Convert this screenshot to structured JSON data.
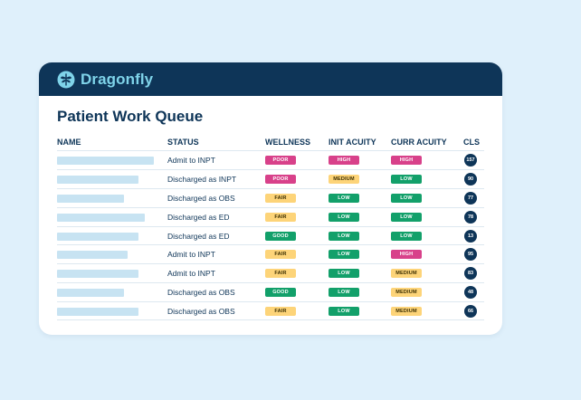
{
  "brand": {
    "name": "Dragonfly",
    "logo_icon": "dragonfly-icon",
    "color": "#7fd4ea"
  },
  "page_title": "Patient Work Queue",
  "columns": {
    "name": "NAME",
    "status": "STATUS",
    "wellness": "WELLNESS",
    "init_acuity": "INIT ACUITY",
    "curr_acuity": "CURR ACUITY",
    "cls": "CLS"
  },
  "rows": [
    {
      "status": "Admit to INPT",
      "wellness": "POOR",
      "init_acuity": "HIGH",
      "curr_acuity": "HIGH",
      "cls": "157"
    },
    {
      "status": "Discharged as INPT",
      "wellness": "POOR",
      "init_acuity": "MEDIUM",
      "curr_acuity": "LOW",
      "cls": "90"
    },
    {
      "status": "Discharged as OBS",
      "wellness": "FAIR",
      "init_acuity": "LOW",
      "curr_acuity": "LOW",
      "cls": "77"
    },
    {
      "status": "Discharged as ED",
      "wellness": "FAIR",
      "init_acuity": "LOW",
      "curr_acuity": "LOW",
      "cls": "78"
    },
    {
      "status": "Discharged as ED",
      "wellness": "GOOD",
      "init_acuity": "LOW",
      "curr_acuity": "LOW",
      "cls": "13"
    },
    {
      "status": "Admit to INPT",
      "wellness": "FAIR",
      "init_acuity": "LOW",
      "curr_acuity": "HIGH",
      "cls": "95"
    },
    {
      "status": "Admit to INPT",
      "wellness": "FAIR",
      "init_acuity": "LOW",
      "curr_acuity": "MEDIUM",
      "cls": "83"
    },
    {
      "status": "Discharged as OBS",
      "wellness": "GOOD",
      "init_acuity": "LOW",
      "curr_acuity": "MEDIUM",
      "cls": "48"
    },
    {
      "status": "Discharged as OBS",
      "wellness": "FAIR",
      "init_acuity": "LOW",
      "curr_acuity": "MEDIUM",
      "cls": "66"
    }
  ],
  "colors": {
    "header_bg": "#0e3558",
    "page_bg": "#dff0fb",
    "badge_red": "#d8418a",
    "badge_yellow": "#fdd479",
    "badge_green": "#12a06a"
  }
}
